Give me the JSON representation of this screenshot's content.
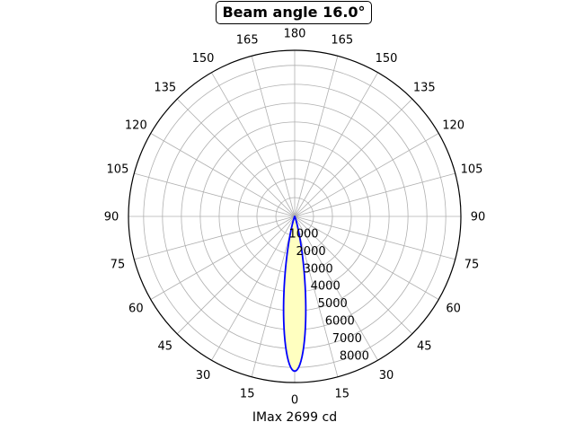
{
  "chart_data": {
    "type": "polar",
    "title": "Beam angle 16.0°",
    "xlabel": "IMax 2699 cd",
    "angle_labels": [
      "0",
      "15",
      "30",
      "45",
      "60",
      "75",
      "90",
      "105",
      "120",
      "135",
      "150",
      "165",
      "180",
      "165",
      "150",
      "135",
      "120",
      "105",
      "90",
      "75",
      "60",
      "45",
      "30",
      "15"
    ],
    "radial_ticks": [
      "1000",
      "2000",
      "3000",
      "4000",
      "5000",
      "6000",
      "7000",
      "8000"
    ],
    "rlim": [
      0,
      8800
    ],
    "grid": true,
    "fill_color": "#ffffc0",
    "line_color": "#0000ff",
    "beam_angle_deg": 16.0,
    "peak_intensity": 8200
  }
}
